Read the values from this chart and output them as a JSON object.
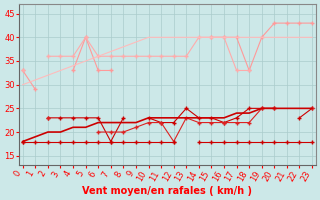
{
  "x": [
    0,
    1,
    2,
    3,
    4,
    5,
    6,
    7,
    8,
    9,
    10,
    11,
    12,
    13,
    14,
    15,
    16,
    17,
    18,
    19,
    20,
    21,
    22,
    23
  ],
  "line1": [
    33,
    29,
    null,
    null,
    33,
    40,
    33,
    33,
    null,
    null,
    null,
    null,
    null,
    null,
    null,
    40,
    40,
    40,
    33,
    40,
    43,
    43,
    43,
    43
  ],
  "line2": [
    33,
    null,
    36,
    36,
    36,
    40,
    36,
    36,
    36,
    36,
    36,
    36,
    36,
    36,
    40,
    40,
    40,
    33,
    33,
    null,
    null,
    null,
    null,
    null
  ],
  "line3_trend": [
    30,
    31,
    32,
    33,
    34,
    35,
    36,
    37,
    38,
    39,
    40,
    40,
    40,
    40,
    40,
    40,
    40,
    40,
    40,
    40,
    40,
    40,
    40,
    40
  ],
  "line4": [
    18,
    null,
    23,
    23,
    23,
    23,
    23,
    18,
    23,
    null,
    23,
    22,
    22,
    25,
    23,
    23,
    22,
    23,
    25,
    25,
    25,
    null,
    23,
    25
  ],
  "line5": [
    null,
    null,
    23,
    null,
    null,
    null,
    20,
    20,
    20,
    21,
    22,
    22,
    18,
    23,
    22,
    22,
    22,
    22,
    22,
    25,
    25,
    null,
    null,
    25
  ],
  "line6_trend": [
    18,
    19,
    20,
    20,
    21,
    21,
    22,
    22,
    22,
    22,
    23,
    23,
    23,
    23,
    23,
    23,
    23,
    24,
    24,
    25,
    25,
    25,
    25,
    25
  ],
  "line7_flat": [
    18,
    18,
    18,
    18,
    18,
    18,
    18,
    18,
    18,
    18,
    18,
    18,
    18,
    null,
    18,
    18,
    18,
    18,
    18,
    18,
    18,
    18,
    18,
    18
  ],
  "bg_color": "#cce8e8",
  "grid_color": "#aacccc",
  "line_colors": {
    "light_pink1": "#ff9999",
    "light_pink2": "#ffaaaa",
    "trend_pink": "#ffbbbb",
    "dark_red1": "#cc0000",
    "dark_red2": "#dd2222",
    "trend_red": "#cc0000",
    "flat_red": "#cc0000"
  },
  "ylabel_ticks": [
    15,
    20,
    25,
    30,
    35,
    40,
    45
  ],
  "xlim": [
    -0.3,
    23.3
  ],
  "ylim": [
    13,
    47
  ],
  "xlabel": "Vent moyen/en rafales ( km/h )",
  "tick_fontsize": 6,
  "label_fontsize": 7
}
